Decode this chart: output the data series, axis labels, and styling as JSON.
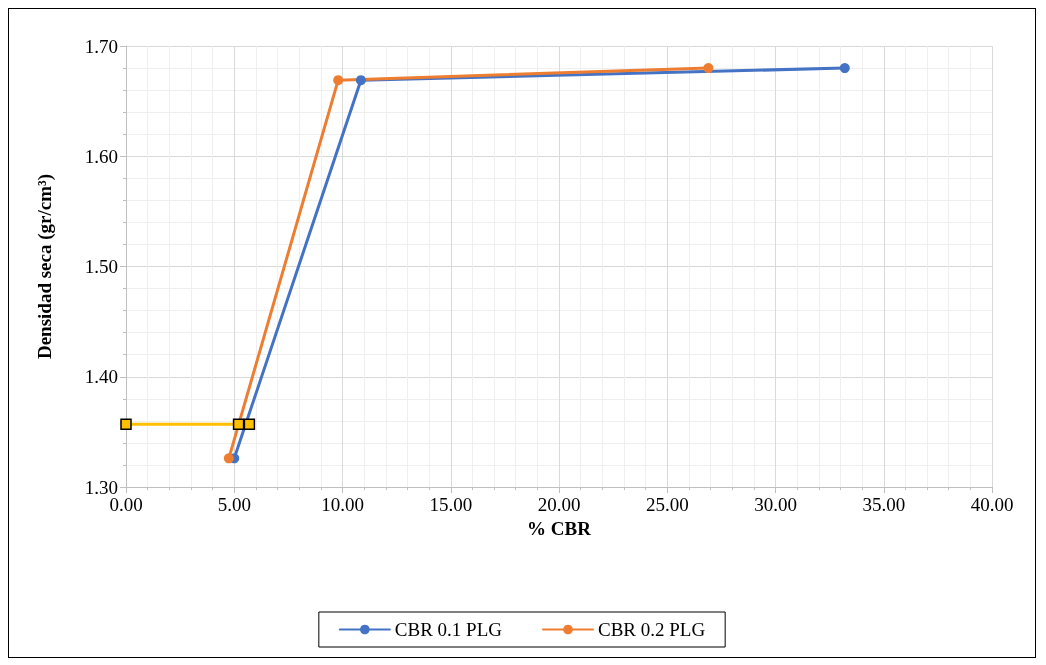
{
  "chart_data": {
    "type": "line",
    "xlabel": "% CBR",
    "ylabel": "Densidad seca (gr/cm³)",
    "series": [
      {
        "name": "CBR 0.1 PLG",
        "color": "#4472c4",
        "x": [
          5.0,
          10.85,
          33.2
        ],
        "values": [
          1.326,
          1.669,
          1.68
        ],
        "marker": "circle"
      },
      {
        "name": "CBR 0.2 PLG",
        "color": "#ed7d31",
        "x": [
          4.75,
          9.8,
          26.9
        ],
        "values": [
          1.326,
          1.669,
          1.68
        ],
        "marker": "circle"
      },
      {
        "color": "#ffc000",
        "x": [
          0,
          5.2,
          5.7
        ],
        "values": [
          1.357,
          1.357,
          1.357
        ],
        "marker": "square"
      }
    ],
    "xlim": [
      0,
      40
    ],
    "xticks": [
      {
        "value": 0,
        "label": "0.00"
      },
      {
        "value": 5,
        "label": "5.00"
      },
      {
        "value": 10,
        "label": "10.00"
      },
      {
        "value": 15,
        "label": "15.00"
      },
      {
        "value": 20,
        "label": "20.00"
      },
      {
        "value": 25,
        "label": "25.00"
      },
      {
        "value": 30,
        "label": "30.00"
      },
      {
        "value": 35,
        "label": "35.00"
      },
      {
        "value": 40,
        "label": "40.00"
      }
    ],
    "ylim": [
      1.3,
      1.7
    ],
    "yticks": [
      {
        "value": 1.3,
        "label": "1.30"
      },
      {
        "value": 1.4,
        "label": "1.40"
      },
      {
        "value": 1.5,
        "label": "1.50"
      },
      {
        "value": 1.6,
        "label": "1.60"
      },
      {
        "value": 1.7,
        "label": "1.70"
      }
    ],
    "grid": true,
    "legend": "bottom",
    "line_style": "solid"
  }
}
